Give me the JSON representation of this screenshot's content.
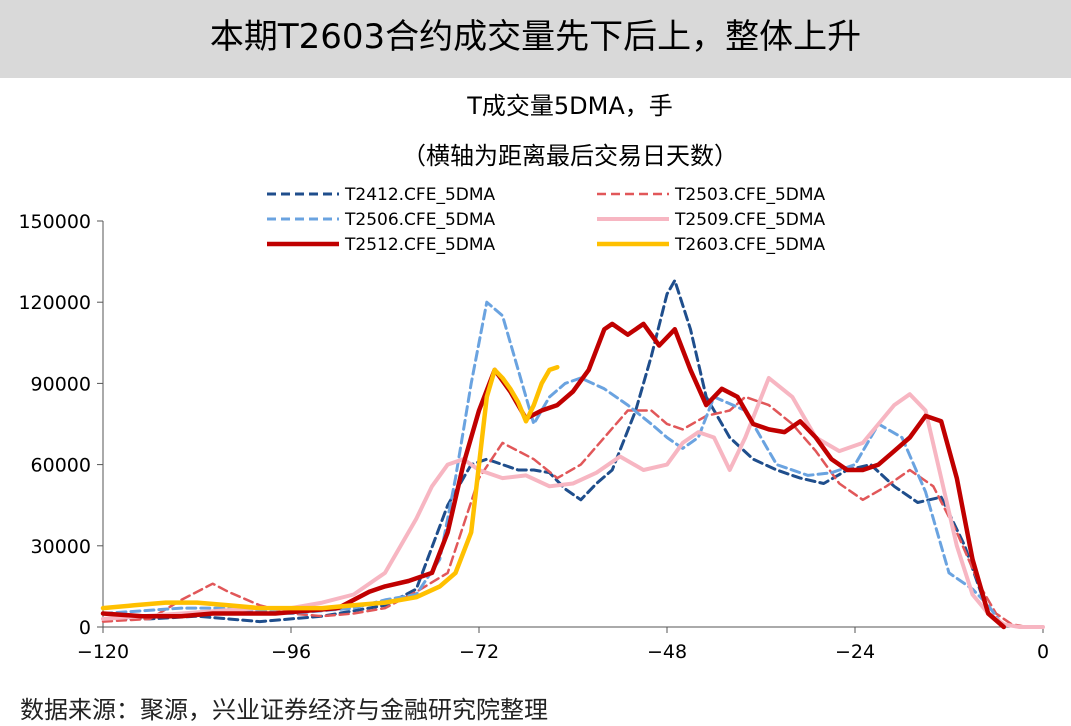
{
  "header": {
    "title": "本期T2603合约成交量先下后上，整体上升",
    "background": "#d9d9d9"
  },
  "source_note": "数据来源：聚源，兴业证券经济与金融研究院整理",
  "chart_data": {
    "type": "line",
    "title": "T成交量5DMA，手",
    "subtitle": "（横轴为距离最后交易日天数）",
    "xlabel": "",
    "ylabel": "",
    "xlim": [
      -120,
      0
    ],
    "ylim": [
      0,
      150000
    ],
    "xticks": [
      -120,
      -96,
      -72,
      -48,
      -24,
      0
    ],
    "yticks": [
      0,
      30000,
      60000,
      90000,
      120000,
      150000
    ],
    "xtick_labels": [
      "−120",
      "−96",
      "−72",
      "−48",
      "−24",
      "0"
    ],
    "ytick_labels": [
      "0",
      "30000",
      "60000",
      "90000",
      "120000",
      "150000"
    ],
    "grid": false,
    "legend_position": "top",
    "series": [
      {
        "name": "T2412.CFE_5DMA",
        "color": "#1f4e8c",
        "dash": "dashed",
        "width": 3,
        "x": [
          -120,
          -114,
          -108,
          -104,
          -100,
          -96,
          -92,
          -88,
          -84,
          -80,
          -76,
          -73,
          -71,
          -69,
          -67,
          -65,
          -63,
          -61,
          -59,
          -57,
          -55,
          -52,
          -50,
          -48,
          -47,
          -45,
          -43,
          -40,
          -37,
          -34,
          -31,
          -28,
          -25,
          -22,
          -19,
          -16,
          -13,
          -10,
          -7,
          -5
        ],
        "y": [
          3000,
          3000,
          4000,
          3000,
          2000,
          3000,
          4000,
          6000,
          8000,
          14000,
          45000,
          60000,
          62000,
          60000,
          58000,
          58000,
          57000,
          51000,
          47000,
          53000,
          58000,
          80000,
          100000,
          123000,
          128000,
          110000,
          85000,
          70000,
          62000,
          58000,
          55000,
          53000,
          58000,
          60000,
          52000,
          46000,
          48000,
          30000,
          5000,
          0
        ]
      },
      {
        "name": "T2503.CFE_5DMA",
        "color": "#e15759",
        "dash": "dashed",
        "width": 2.5,
        "x": [
          -120,
          -114,
          -110,
          -106,
          -104,
          -100,
          -96,
          -92,
          -88,
          -84,
          -80,
          -76,
          -72,
          -69,
          -65,
          -62,
          -59,
          -56,
          -53,
          -50,
          -48,
          -46,
          -43,
          -40,
          -38,
          -35,
          -32,
          -29,
          -26,
          -23,
          -20,
          -17,
          -14,
          -11,
          -8,
          -6,
          -4,
          -2,
          0
        ],
        "y": [
          2000,
          3000,
          10000,
          16000,
          13000,
          8000,
          5000,
          4000,
          5000,
          7000,
          13000,
          20000,
          55000,
          68000,
          62000,
          55000,
          60000,
          70000,
          80000,
          80000,
          75000,
          73000,
          78000,
          80000,
          85000,
          82000,
          75000,
          65000,
          53000,
          47000,
          52000,
          58000,
          52000,
          35000,
          15000,
          5000,
          1000,
          0,
          0
        ]
      },
      {
        "name": "T2506.CFE_5DMA",
        "color": "#6aa3e0",
        "dash": "dashed",
        "width": 3,
        "x": [
          -120,
          -115,
          -110,
          -105,
          -100,
          -96,
          -92,
          -88,
          -84,
          -80,
          -77,
          -75,
          -73,
          -71,
          -69,
          -67,
          -65,
          -63,
          -61,
          -59,
          -56,
          -53,
          -50,
          -48,
          -46,
          -44,
          -42,
          -38,
          -34,
          -30,
          -27,
          -24,
          -21,
          -18,
          -15,
          -12,
          -9,
          -7,
          -5
        ],
        "y": [
          5000,
          6000,
          7000,
          7000,
          6000,
          5000,
          6000,
          7000,
          10000,
          12000,
          25000,
          55000,
          90000,
          120000,
          115000,
          95000,
          75000,
          85000,
          90000,
          92000,
          88000,
          82000,
          75000,
          70000,
          66000,
          70000,
          85000,
          80000,
          60000,
          56000,
          57000,
          60000,
          75000,
          70000,
          50000,
          20000,
          14000,
          8000,
          0
        ]
      },
      {
        "name": "T2509.CFE_5DMA",
        "color": "#f7b6c2",
        "dash": "solid",
        "width": 4,
        "x": [
          -120,
          -115,
          -110,
          -105,
          -100,
          -96,
          -92,
          -88,
          -84,
          -82,
          -80,
          -78,
          -76,
          -74,
          -72,
          -69,
          -66,
          -63,
          -60,
          -57,
          -54,
          -51,
          -48,
          -46,
          -44,
          -42,
          -40,
          -38,
          -35,
          -32,
          -29,
          -26,
          -23,
          -21,
          -19,
          -17,
          -15,
          -13,
          -11,
          -9,
          -7,
          -5,
          -3,
          -1,
          0
        ],
        "y": [
          3000,
          4000,
          5000,
          6000,
          7000,
          7000,
          9000,
          12000,
          20000,
          30000,
          40000,
          52000,
          60000,
          62000,
          58000,
          55000,
          56000,
          52000,
          53000,
          57000,
          63000,
          58000,
          60000,
          68000,
          72000,
          70000,
          58000,
          70000,
          92000,
          85000,
          70000,
          65000,
          68000,
          75000,
          82000,
          86000,
          80000,
          55000,
          30000,
          12000,
          5000,
          1000,
          0,
          0,
          0
        ]
      },
      {
        "name": "T2512.CFE_5DMA",
        "color": "#c00000",
        "dash": "solid",
        "width": 4.5,
        "x": [
          -120,
          -115,
          -110,
          -106,
          -102,
          -98,
          -94,
          -90,
          -88,
          -86,
          -84,
          -81,
          -78,
          -76,
          -74,
          -72,
          -70,
          -68,
          -66,
          -64,
          -62,
          -60,
          -58,
          -56,
          -55,
          -53,
          -51,
          -49,
          -47,
          -45,
          -43,
          -41,
          -39,
          -37,
          -35,
          -33,
          -31,
          -29,
          -27,
          -25,
          -23,
          -21,
          -19,
          -17,
          -15,
          -13,
          -11,
          -9,
          -7,
          -5
        ],
        "y": [
          5000,
          4000,
          4000,
          5000,
          5000,
          5000,
          6000,
          7000,
          10000,
          13000,
          15000,
          17000,
          20000,
          35000,
          60000,
          80000,
          95000,
          87000,
          77000,
          80000,
          82000,
          87000,
          95000,
          110000,
          112000,
          108000,
          112000,
          104000,
          110000,
          95000,
          82000,
          88000,
          85000,
          75000,
          73000,
          72000,
          76000,
          70000,
          62000,
          58000,
          58000,
          60000,
          65000,
          70000,
          78000,
          76000,
          55000,
          25000,
          5000,
          0
        ]
      },
      {
        "name": "T2603.CFE_5DMA",
        "color": "#ffc000",
        "dash": "solid",
        "width": 4.5,
        "x": [
          -120,
          -116,
          -112,
          -108,
          -104,
          -100,
          -96,
          -92,
          -88,
          -84,
          -80,
          -77,
          -75,
          -73,
          -72,
          -71,
          -70,
          -69,
          -68,
          -67,
          -66,
          -65,
          -64,
          -63,
          -62
        ],
        "y": [
          7000,
          8000,
          9000,
          9000,
          8000,
          7000,
          7000,
          7000,
          8000,
          9000,
          11000,
          15000,
          20000,
          35000,
          60000,
          85000,
          95000,
          92000,
          88000,
          83000,
          76000,
          82000,
          90000,
          95000,
          96000
        ]
      }
    ]
  }
}
